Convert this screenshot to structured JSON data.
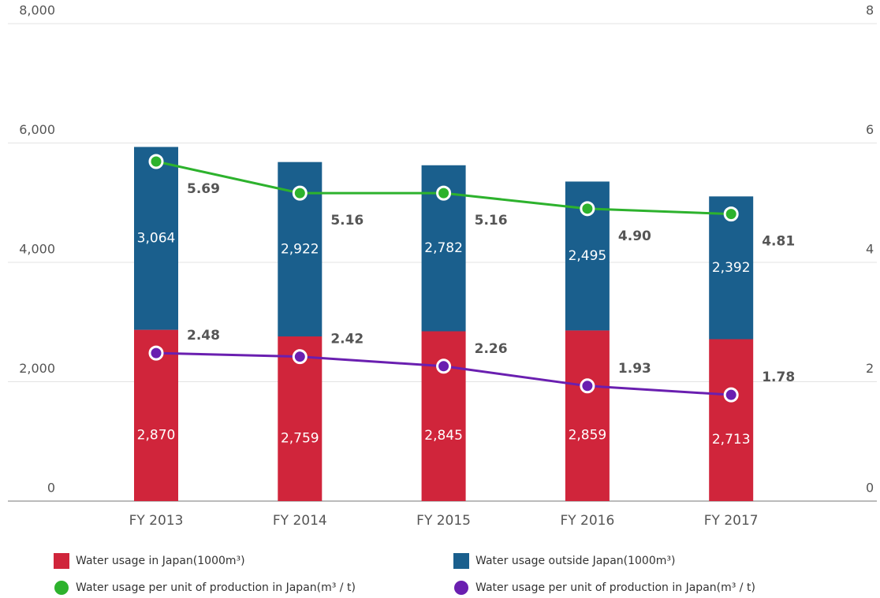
{
  "chart_data": {
    "type": "bar_line",
    "categories": [
      "FY 2013",
      "FY 2014",
      "FY 2015",
      "FY 2016",
      "FY 2017"
    ],
    "series": [
      {
        "name": "Water usage in Japan(1000m³)",
        "color": "#d0253b",
        "type": "bar",
        "values": [
          2870,
          2759,
          2845,
          2859,
          2713
        ],
        "value_labels": [
          "2,870",
          "2,759",
          "2,845",
          "2,859",
          "2,713"
        ]
      },
      {
        "name": "Water usage outside Japan(1000m³)",
        "color": "#1a5f8d",
        "type": "bar",
        "values": [
          3064,
          2922,
          2782,
          2495,
          2392
        ],
        "value_labels": [
          "3,064",
          "2,922",
          "2,782",
          "2,495",
          "2,392"
        ]
      },
      {
        "name": "Water usage per unit of production in Japan(m³ / t)",
        "color": "#2db22d",
        "type": "line",
        "axis": "y2",
        "values": [
          5.69,
          5.16,
          5.16,
          4.9,
          4.81
        ],
        "value_labels": [
          "5.69",
          "5.16",
          "5.16",
          "4.90",
          "4.81"
        ]
      },
      {
        "name": "Water usage per unit of production in Japan(m³ / t)",
        "color": "#6a1fb0",
        "type": "line",
        "axis": "y2",
        "values": [
          2.48,
          2.42,
          2.26,
          1.93,
          1.78
        ],
        "value_labels": [
          "2.48",
          "2.42",
          "2.26",
          "1.93",
          "1.78"
        ]
      }
    ],
    "ylim": [
      0,
      8000
    ],
    "yticks": [
      0,
      {
        "value": 2000,
        "label": "2,000"
      },
      {
        "value": 4000,
        "label": "4,000"
      },
      {
        "value": 6000,
        "label": "6,000"
      },
      {
        "value": 8000,
        "label": "8,000"
      }
    ],
    "y2lim": [
      0,
      8
    ],
    "y2ticks": [
      0,
      2,
      4,
      6,
      8
    ],
    "grid": true
  }
}
